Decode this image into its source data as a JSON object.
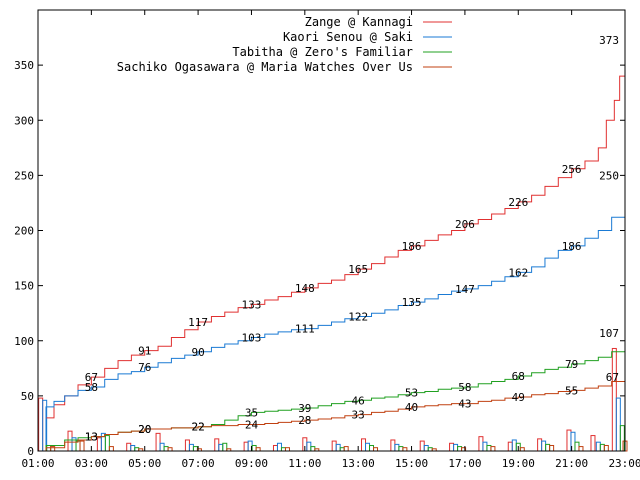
{
  "chart_data": {
    "type": "line",
    "title": "",
    "xlabel": "",
    "ylabel": "",
    "xlim": [
      "01:00",
      "23:00"
    ],
    "ylim": [
      0,
      400
    ],
    "grid": false,
    "legend_position": "top-right",
    "x_ticks": [
      "01:00",
      "03:00",
      "05:00",
      "07:00",
      "09:00",
      "11:00",
      "13:00",
      "15:00",
      "17:00",
      "19:00",
      "21:00",
      "23:00"
    ],
    "y_ticks": [
      0,
      50,
      100,
      150,
      200,
      250,
      300,
      350
    ],
    "series": [
      {
        "name": "Zange @ Kannagi",
        "color": "#e03030",
        "points": [
          [
            1.0,
            0
          ],
          [
            1.3,
            30
          ],
          [
            1.6,
            42
          ],
          [
            2.0,
            50
          ],
          [
            2.5,
            60
          ],
          [
            3.0,
            67
          ],
          [
            3.5,
            75
          ],
          [
            4.0,
            82
          ],
          [
            4.5,
            87
          ],
          [
            5.0,
            91
          ],
          [
            5.5,
            95
          ],
          [
            6.0,
            103
          ],
          [
            6.5,
            110
          ],
          [
            7.0,
            117
          ],
          [
            7.5,
            122
          ],
          [
            8.0,
            126
          ],
          [
            8.5,
            130
          ],
          [
            9.0,
            133
          ],
          [
            9.5,
            137
          ],
          [
            10.0,
            140
          ],
          [
            10.5,
            144
          ],
          [
            11.0,
            148
          ],
          [
            11.5,
            152
          ],
          [
            12.0,
            155
          ],
          [
            12.5,
            160
          ],
          [
            13.0,
            165
          ],
          [
            13.5,
            170
          ],
          [
            14.0,
            176
          ],
          [
            14.5,
            182
          ],
          [
            15.0,
            186
          ],
          [
            15.5,
            191
          ],
          [
            16.0,
            196
          ],
          [
            16.5,
            200
          ],
          [
            17.0,
            206
          ],
          [
            17.5,
            210
          ],
          [
            18.0,
            215
          ],
          [
            18.5,
            220
          ],
          [
            19.0,
            226
          ],
          [
            19.5,
            232
          ],
          [
            20.0,
            240
          ],
          [
            20.5,
            248
          ],
          [
            21.0,
            256
          ],
          [
            21.5,
            263
          ],
          [
            22.0,
            275
          ],
          [
            22.3,
            300
          ],
          [
            22.6,
            318
          ],
          [
            22.8,
            340
          ],
          [
            23.0,
            373
          ]
        ],
        "labels": [
          [
            3.0,
            67
          ],
          [
            5.0,
            91
          ],
          [
            7.0,
            117
          ],
          [
            9.0,
            133
          ],
          [
            11.0,
            148
          ],
          [
            13.0,
            165
          ],
          [
            15.0,
            186
          ],
          [
            17.0,
            206
          ],
          [
            19.0,
            226
          ],
          [
            21.0,
            256
          ],
          [
            23.0,
            373
          ]
        ]
      },
      {
        "name": "Kaori Senou @ Saki",
        "color": "#1a7ad4",
        "points": [
          [
            1.0,
            0
          ],
          [
            1.3,
            40
          ],
          [
            1.6,
            45
          ],
          [
            2.0,
            50
          ],
          [
            2.5,
            55
          ],
          [
            3.0,
            58
          ],
          [
            3.5,
            65
          ],
          [
            4.0,
            70
          ],
          [
            4.5,
            72
          ],
          [
            5.0,
            76
          ],
          [
            5.5,
            80
          ],
          [
            6.0,
            84
          ],
          [
            6.5,
            87
          ],
          [
            7.0,
            90
          ],
          [
            7.5,
            94
          ],
          [
            8.0,
            97
          ],
          [
            8.5,
            100
          ],
          [
            9.0,
            103
          ],
          [
            9.5,
            106
          ],
          [
            10.0,
            108
          ],
          [
            10.5,
            110
          ],
          [
            11.0,
            111
          ],
          [
            11.5,
            114
          ],
          [
            12.0,
            117
          ],
          [
            12.5,
            120
          ],
          [
            13.0,
            122
          ],
          [
            13.5,
            125
          ],
          [
            14.0,
            128
          ],
          [
            14.5,
            132
          ],
          [
            15.0,
            135
          ],
          [
            15.5,
            138
          ],
          [
            16.0,
            142
          ],
          [
            16.5,
            145
          ],
          [
            17.0,
            147
          ],
          [
            17.5,
            150
          ],
          [
            18.0,
            154
          ],
          [
            18.5,
            158
          ],
          [
            19.0,
            162
          ],
          [
            19.5,
            167
          ],
          [
            20.0,
            175
          ],
          [
            20.5,
            182
          ],
          [
            21.0,
            186
          ],
          [
            21.5,
            193
          ],
          [
            22.0,
            200
          ],
          [
            22.5,
            212
          ],
          [
            23.0,
            250
          ]
        ],
        "labels": [
          [
            3.0,
            58
          ],
          [
            5.0,
            76
          ],
          [
            7.0,
            90
          ],
          [
            9.0,
            103
          ],
          [
            11.0,
            111
          ],
          [
            13.0,
            122
          ],
          [
            15.0,
            135
          ],
          [
            17.0,
            147
          ],
          [
            19.0,
            162
          ],
          [
            21.0,
            186
          ],
          [
            23.0,
            250
          ]
        ]
      },
      {
        "name": "Tabitha @ Zero's Familiar",
        "color": "#20a020",
        "points": [
          [
            1.0,
            0
          ],
          [
            1.3,
            5
          ],
          [
            2.0,
            10
          ],
          [
            2.5,
            12
          ],
          [
            3.0,
            13
          ],
          [
            3.5,
            15
          ],
          [
            4.0,
            17
          ],
          [
            4.5,
            18
          ],
          [
            5.0,
            20
          ],
          [
            5.5,
            20
          ],
          [
            6.0,
            21
          ],
          [
            6.5,
            21
          ],
          [
            7.0,
            22
          ],
          [
            7.5,
            24
          ],
          [
            8.0,
            28
          ],
          [
            8.5,
            32
          ],
          [
            9.0,
            35
          ],
          [
            9.5,
            36
          ],
          [
            10.0,
            37
          ],
          [
            10.5,
            38
          ],
          [
            11.0,
            39
          ],
          [
            11.5,
            41
          ],
          [
            12.0,
            43
          ],
          [
            12.5,
            45
          ],
          [
            13.0,
            46
          ],
          [
            13.5,
            48
          ],
          [
            14.0,
            49
          ],
          [
            14.5,
            51
          ],
          [
            15.0,
            53
          ],
          [
            15.5,
            54
          ],
          [
            16.0,
            56
          ],
          [
            16.5,
            57
          ],
          [
            17.0,
            58
          ],
          [
            17.5,
            61
          ],
          [
            18.0,
            63
          ],
          [
            18.5,
            65
          ],
          [
            19.0,
            68
          ],
          [
            19.5,
            71
          ],
          [
            20.0,
            74
          ],
          [
            20.5,
            76
          ],
          [
            21.0,
            79
          ],
          [
            21.5,
            82
          ],
          [
            22.0,
            85
          ],
          [
            22.5,
            90
          ],
          [
            23.0,
            107
          ]
        ],
        "labels": [
          [
            3.0,
            13
          ],
          [
            5.0,
            20
          ],
          [
            7.0,
            22
          ],
          [
            9.0,
            35
          ],
          [
            11.0,
            39
          ],
          [
            13.0,
            46
          ],
          [
            15.0,
            53
          ],
          [
            17.0,
            58
          ],
          [
            19.0,
            68
          ],
          [
            21.0,
            79
          ],
          [
            23.0,
            107
          ]
        ]
      },
      {
        "name": "Sachiko Ogasawara @ Maria Watches Over Us",
        "color": "#c04010",
        "points": [
          [
            1.0,
            0
          ],
          [
            1.3,
            3
          ],
          [
            2.0,
            8
          ],
          [
            2.5,
            10
          ],
          [
            3.0,
            13
          ],
          [
            3.5,
            15
          ],
          [
            4.0,
            17
          ],
          [
            4.5,
            18
          ],
          [
            5.0,
            20
          ],
          [
            5.5,
            20
          ],
          [
            6.0,
            21
          ],
          [
            6.5,
            21
          ],
          [
            7.0,
            22
          ],
          [
            7.5,
            23
          ],
          [
            8.0,
            23
          ],
          [
            8.5,
            24
          ],
          [
            9.0,
            24
          ],
          [
            9.5,
            25
          ],
          [
            10.0,
            26
          ],
          [
            10.5,
            27
          ],
          [
            11.0,
            28
          ],
          [
            11.5,
            29
          ],
          [
            12.0,
            30
          ],
          [
            12.5,
            32
          ],
          [
            13.0,
            33
          ],
          [
            13.5,
            35
          ],
          [
            14.0,
            36
          ],
          [
            14.5,
            38
          ],
          [
            15.0,
            40
          ],
          [
            15.5,
            41
          ],
          [
            16.0,
            42
          ],
          [
            16.5,
            43
          ],
          [
            17.0,
            43
          ],
          [
            17.5,
            45
          ],
          [
            18.0,
            46
          ],
          [
            18.5,
            48
          ],
          [
            19.0,
            49
          ],
          [
            19.5,
            51
          ],
          [
            20.0,
            52
          ],
          [
            20.5,
            54
          ],
          [
            21.0,
            55
          ],
          [
            21.5,
            57
          ],
          [
            22.0,
            59
          ],
          [
            22.5,
            63
          ],
          [
            23.0,
            67
          ]
        ],
        "labels": [
          [
            3.0,
            13
          ],
          [
            5.0,
            20
          ],
          [
            7.0,
            22
          ],
          [
            9.0,
            24
          ],
          [
            11.0,
            28
          ],
          [
            13.0,
            33
          ],
          [
            15.0,
            40
          ],
          [
            17.0,
            43
          ],
          [
            19.0,
            49
          ],
          [
            21.0,
            55
          ],
          [
            23.0,
            67
          ]
        ]
      }
    ],
    "bar_groups": [
      {
        "series": "Zange @ Kannagi",
        "color": "#e03030",
        "points": [
          [
            1.1,
            48
          ],
          [
            2.2,
            18
          ],
          [
            3.3,
            12
          ],
          [
            4.4,
            7
          ],
          [
            5.5,
            16
          ],
          [
            6.6,
            10
          ],
          [
            7.7,
            11
          ],
          [
            8.8,
            8
          ],
          [
            9.9,
            5
          ],
          [
            11.0,
            12
          ],
          [
            12.1,
            9
          ],
          [
            13.2,
            11
          ],
          [
            14.3,
            10
          ],
          [
            15.4,
            9
          ],
          [
            16.5,
            7
          ],
          [
            17.6,
            13
          ],
          [
            18.7,
            8
          ],
          [
            19.8,
            11
          ],
          [
            20.9,
            19
          ],
          [
            21.8,
            14
          ],
          [
            22.6,
            93
          ]
        ]
      },
      {
        "series": "Kaori Senou @ Saki",
        "color": "#1a7ad4",
        "points": [
          [
            1.25,
            46
          ],
          [
            2.35,
            12
          ],
          [
            3.45,
            16
          ],
          [
            4.55,
            5
          ],
          [
            5.65,
            7
          ],
          [
            6.75,
            6
          ],
          [
            7.85,
            6
          ],
          [
            8.95,
            9
          ],
          [
            10.05,
            7
          ],
          [
            11.15,
            8
          ],
          [
            12.25,
            6
          ],
          [
            13.35,
            7
          ],
          [
            14.45,
            6
          ],
          [
            15.55,
            5
          ],
          [
            16.65,
            6
          ],
          [
            17.75,
            8
          ],
          [
            18.85,
            10
          ],
          [
            19.95,
            9
          ],
          [
            21.05,
            17
          ],
          [
            22.0,
            8
          ],
          [
            22.75,
            48
          ]
        ]
      },
      {
        "series": "Tabitha @ Zero's Familiar",
        "color": "#20a020",
        "points": [
          [
            1.4,
            5
          ],
          [
            2.5,
            9
          ],
          [
            3.6,
            14
          ],
          [
            4.7,
            3
          ],
          [
            5.8,
            4
          ],
          [
            6.9,
            4
          ],
          [
            8.0,
            7
          ],
          [
            9.1,
            5
          ],
          [
            10.2,
            3
          ],
          [
            11.3,
            4
          ],
          [
            12.4,
            3
          ],
          [
            13.5,
            5
          ],
          [
            14.6,
            4
          ],
          [
            15.7,
            3
          ],
          [
            16.8,
            4
          ],
          [
            17.9,
            5
          ],
          [
            19.0,
            7
          ],
          [
            20.1,
            6
          ],
          [
            21.2,
            8
          ],
          [
            22.15,
            6
          ],
          [
            22.9,
            23
          ]
        ]
      },
      {
        "series": "Sachiko Ogasawara @ Maria Watches Over Us",
        "color": "#c04010",
        "points": [
          [
            1.55,
            4
          ],
          [
            2.65,
            9
          ],
          [
            3.75,
            4
          ],
          [
            4.85,
            2
          ],
          [
            5.95,
            3
          ],
          [
            7.05,
            2
          ],
          [
            8.15,
            2
          ],
          [
            9.25,
            3
          ],
          [
            10.35,
            3
          ],
          [
            11.45,
            2
          ],
          [
            12.55,
            4
          ],
          [
            13.65,
            3
          ],
          [
            14.75,
            3
          ],
          [
            15.85,
            2
          ],
          [
            16.95,
            3
          ],
          [
            18.05,
            4
          ],
          [
            19.15,
            3
          ],
          [
            20.25,
            5
          ],
          [
            21.35,
            4
          ],
          [
            22.3,
            5
          ],
          [
            23.0,
            9
          ]
        ]
      }
    ]
  }
}
